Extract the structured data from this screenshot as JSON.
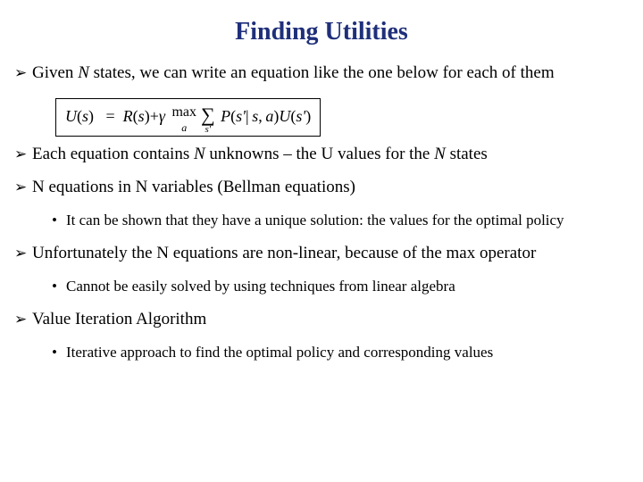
{
  "title_color": "#1f2f7a",
  "title": "Finding Utilities",
  "bullets": {
    "b1_part1": "Given ",
    "b1_ital": "N",
    "b1_part2": " states, we can write an equation like the one below for each of them",
    "b2_part1": "Each equation contains ",
    "b2_ital1": "N",
    "b2_part2": " unknowns – the U values for the ",
    "b2_ital2": "N",
    "b2_part3": " states",
    "b3": "N equations in N variables (Bellman equations)",
    "b3_sub": "It can be shown that they have a unique solution: the values for the optimal policy",
    "b4": "Unfortunately the N equations are non-linear, because of the max operator",
    "b4_sub": "Cannot be easily solved by using techniques from linear algebra",
    "b5": "Value Iteration Algorithm",
    "b5_sub": "Iterative approach to find the optimal policy and corresponding values"
  },
  "equation": {
    "lhs_U": "U",
    "lhs_s": "s",
    "eq": "=",
    "R": "R",
    "plus": "+",
    "gamma": "γ",
    "max": "max",
    "max_sub": "a",
    "sum": "∑",
    "sum_sub": "s'",
    "P": "P",
    "sprime": "s'",
    "bar": "|",
    "s2": "s",
    "comma": ",",
    "a": "a",
    "U2": "U",
    "sprime2": "s'"
  },
  "glyphs": {
    "arrow": "➢",
    "dot": "•"
  }
}
